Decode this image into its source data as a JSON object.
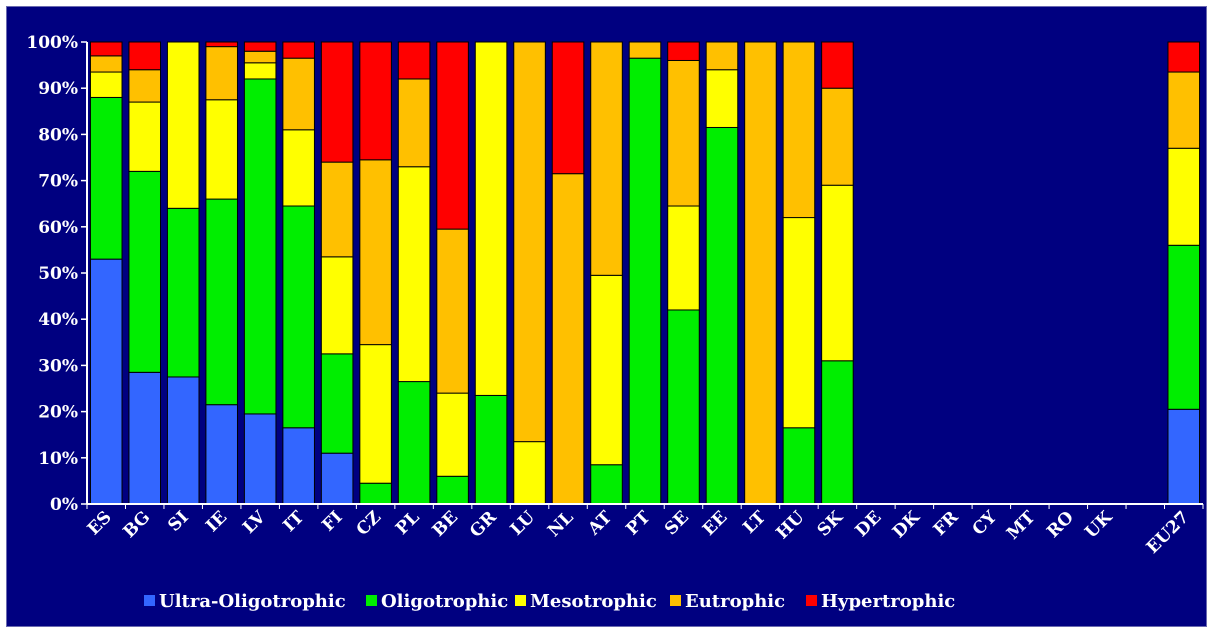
{
  "chart_data": {
    "type": "bar",
    "stacked": true,
    "normalized": true,
    "categories": [
      "ES",
      "BG",
      "SI",
      "IE",
      "LV",
      "IT",
      "FI",
      "CZ",
      "PL",
      "BE",
      "GR",
      "LU",
      "NL",
      "AT",
      "PT",
      "SE",
      "EE",
      "LT",
      "HU",
      "SK",
      "DE",
      "DK",
      "FR",
      "CY",
      "MT",
      "RO",
      "UK",
      "",
      "EU27"
    ],
    "y_tick_labels": [
      "0%",
      "10%",
      "20%",
      "30%",
      "40%",
      "50%",
      "60%",
      "70%",
      "80%",
      "90%",
      "100%"
    ],
    "ylim": [
      0,
      100
    ],
    "grid": false,
    "legend_position": "bottom",
    "series": [
      {
        "name": "Ultra-Oligotrophic",
        "color": "#3366ff",
        "values": [
          53,
          28.5,
          27.5,
          21.5,
          19.5,
          16.5,
          11,
          0,
          0,
          0,
          0,
          0,
          0,
          0,
          0,
          0,
          0,
          0,
          0,
          0,
          0,
          0,
          0,
          0,
          0,
          0,
          0,
          0,
          20.5
        ]
      },
      {
        "name": "Oligotrophic",
        "color": "#00ee00",
        "values": [
          35,
          43.5,
          36.5,
          44.5,
          72.5,
          48,
          21.5,
          4.5,
          26.5,
          6,
          23.5,
          0,
          0,
          8.5,
          96.5,
          42,
          81.5,
          0,
          16.5,
          31,
          0,
          0,
          0,
          0,
          0,
          0,
          0,
          0,
          35.5
        ]
      },
      {
        "name": "Mesotrophic",
        "color": "#ffff00",
        "values": [
          5.5,
          15,
          36,
          21.5,
          3.5,
          16.5,
          21,
          30,
          46.5,
          18,
          76.5,
          13.5,
          0,
          41,
          0,
          22.5,
          12.5,
          0,
          45.5,
          38,
          0,
          0,
          0,
          0,
          0,
          0,
          0,
          0,
          21
        ]
      },
      {
        "name": "Eutrophic",
        "color": "#ffc000",
        "values": [
          3.5,
          7,
          0,
          11.5,
          2.5,
          15.5,
          20.5,
          40,
          19,
          35.5,
          0,
          86.5,
          71.5,
          50.5,
          3.5,
          31.5,
          6,
          100,
          38,
          21,
          0,
          0,
          0,
          0,
          0,
          0,
          0,
          0,
          16.5
        ]
      },
      {
        "name": "Hypertrophic",
        "color": "#ff0000",
        "values": [
          3,
          6,
          0,
          1,
          2,
          3.5,
          26,
          25.5,
          8,
          40.5,
          0,
          0,
          28.5,
          0,
          0,
          4,
          0,
          0,
          0,
          10,
          0,
          0,
          0,
          0,
          0,
          0,
          0,
          0,
          6.5
        ]
      }
    ]
  }
}
